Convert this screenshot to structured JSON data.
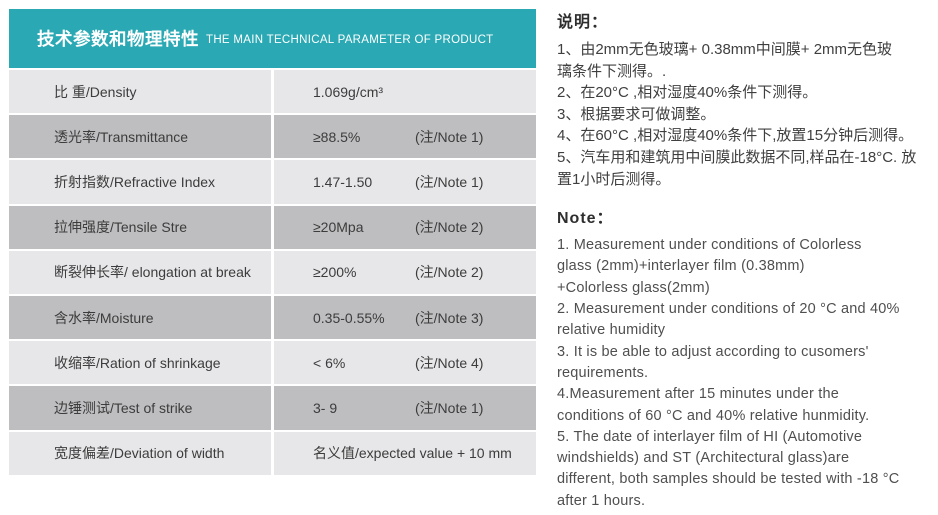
{
  "table": {
    "title_zh": "技术参数和物理特性",
    "title_en": "THE MAIN TECHNICAL PARAMETER OF PRODUCT",
    "rows": [
      {
        "label": "比 重/Density",
        "value": "1.069g/cm³",
        "note": ""
      },
      {
        "label": "透光率/Transmittance",
        "value": "≥88.5%",
        "note": "(注/Note 1)"
      },
      {
        "label": "折射指数/Refractive Index",
        "value": "1.47-1.50",
        "note": "(注/Note 1)"
      },
      {
        "label": "拉伸强度/Tensile Stre",
        "value": "≥20Mpa",
        "note": "(注/Note 2)"
      },
      {
        "label": "断裂伸长率/ elongation at break",
        "value": "≥200%",
        "note": "(注/Note 2)"
      },
      {
        "label": "含水率/Moisture",
        "value": "0.35-0.55%",
        "note": "(注/Note 3)"
      },
      {
        "label": "收缩率/Ration of shrinkage",
        "value": "< 6%",
        "note": "(注/Note 4)"
      },
      {
        "label": "边锤测试/Test of strike",
        "value": "3- 9",
        "note": "(注/Note 1)"
      },
      {
        "label": "宽度偏差/Deviation of width",
        "value": "名义值/expected value  + 10 mm",
        "note": ""
      }
    ]
  },
  "notes_zh": {
    "heading": "说明：",
    "items": [
      "1、由2mm无色玻璃+ 0.38mm中间膜+ 2mm无色玻\n璃条件下测得。.",
      "2、在20°C ,相对湿度40%条件下测得。",
      "3、根据要求可做调整。",
      "4、在60°C ,相对湿度40%条件下,放置15分钟后测得。",
      "5、汽车用和建筑用中间膜此数据不同,样品在-18°C. 放\n置1小时后测得。"
    ]
  },
  "notes_en": {
    "heading": "Note：",
    "items": [
      "1. Measurement under conditions of Colorless\nglass (2mm)+interlayer film (0.38mm)\n+Colorless glass(2mm)",
      "2. Measurement under conditions of 20 °C and 40%\nrelative humidity",
      "3. It is be able to adjust according to cusomers'\nrequirements.",
      "4.Measurement after 15 minutes under the\nconditions of 60 °C and 40% relative hunmidity.",
      "5. The date of interlayer film of HI (Automotive\nwindshields) and ST (Architectural glass)are\ndifferent, both samples should be tested with -18 °C\nafter 1 hours."
    ]
  },
  "colors": {
    "header_bg": "#2aa9b4",
    "header_text": "#ffffff",
    "row_light": "#e7e7e9",
    "row_dark": "#bebec0",
    "body_text": "#3c3c3c"
  }
}
